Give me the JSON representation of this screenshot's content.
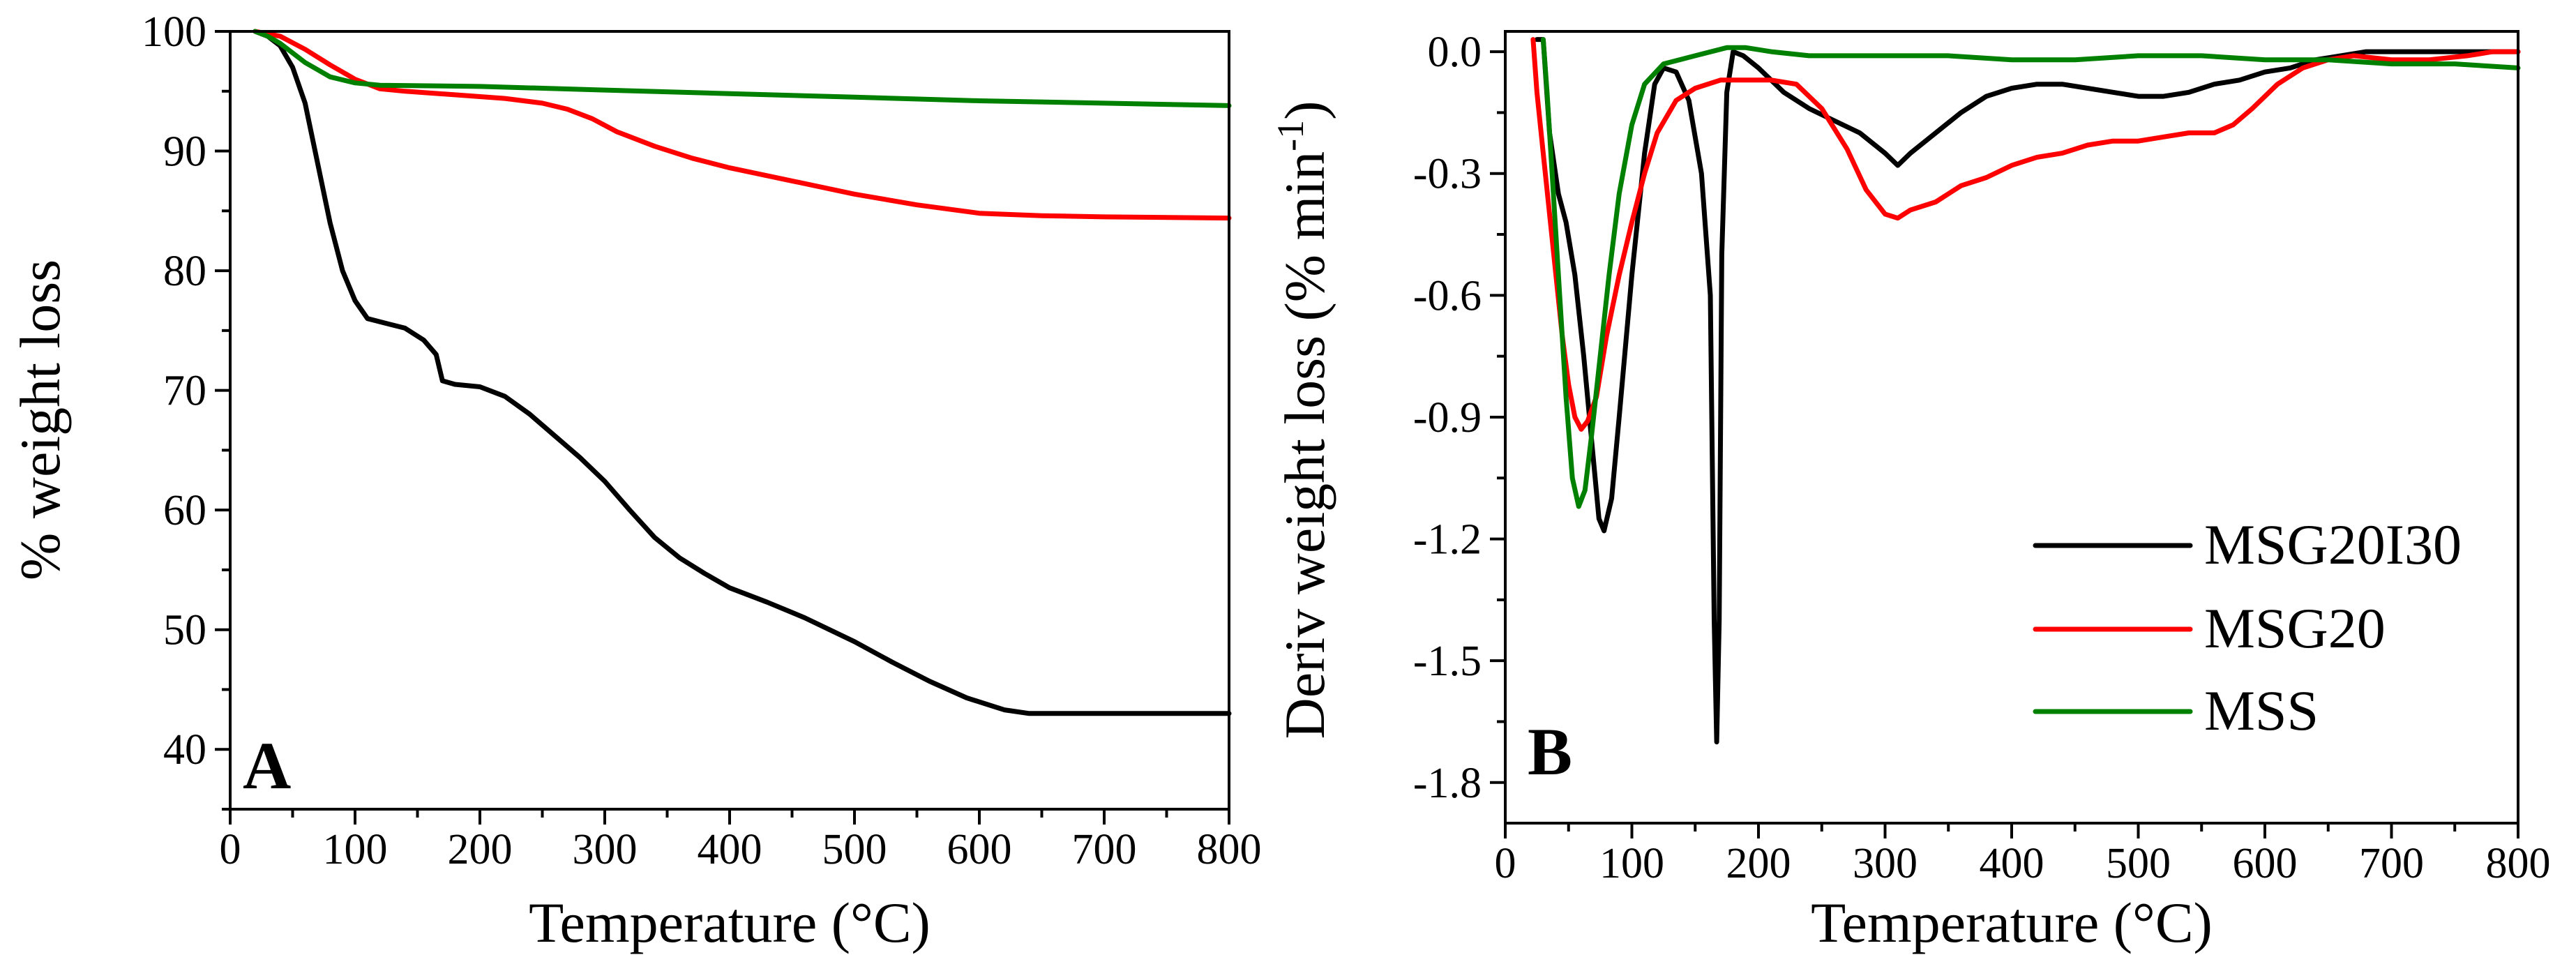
{
  "colors": {
    "MSG20I30": "#000000",
    "MSG20": "#ff0000",
    "MSS": "#008000"
  },
  "chart_data": [
    {
      "panel_label": "A",
      "type": "line",
      "xlabel": "Temperature (°C)",
      "ylabel": "% weight loss",
      "xlim": [
        0,
        800
      ],
      "ylim": [
        35,
        100
      ],
      "xticks": [
        0,
        100,
        200,
        300,
        400,
        500,
        600,
        700,
        800
      ],
      "yticks": [
        40,
        50,
        60,
        70,
        80,
        90,
        100
      ],
      "x_tick_labels": [
        "0",
        "100",
        "200",
        "300",
        "400",
        "500",
        "600",
        "700",
        "800"
      ],
      "y_tick_labels": [
        "40",
        "50",
        "60",
        "70",
        "80",
        "90",
        "100"
      ],
      "grid": false,
      "series": [
        {
          "name": "MSG20I30",
          "color": "#000000",
          "points": [
            [
              20,
              100
            ],
            [
              30,
              99.6
            ],
            [
              40,
              98.8
            ],
            [
              50,
              97
            ],
            [
              60,
              94
            ],
            [
              70,
              89
            ],
            [
              80,
              84
            ],
            [
              90,
              80
            ],
            [
              100,
              77.5
            ],
            [
              110,
              76
            ],
            [
              125,
              75.6
            ],
            [
              140,
              75.2
            ],
            [
              155,
              74.2
            ],
            [
              165,
              73
            ],
            [
              170,
              70.8
            ],
            [
              180,
              70.5
            ],
            [
              200,
              70.3
            ],
            [
              220,
              69.5
            ],
            [
              240,
              68
            ],
            [
              260,
              66.2
            ],
            [
              280,
              64.4
            ],
            [
              300,
              62.4
            ],
            [
              320,
              60
            ],
            [
              340,
              57.7
            ],
            [
              360,
              56
            ],
            [
              380,
              54.7
            ],
            [
              400,
              53.5
            ],
            [
              430,
              52.3
            ],
            [
              460,
              51
            ],
            [
              500,
              49
            ],
            [
              530,
              47.3
            ],
            [
              560,
              45.7
            ],
            [
              590,
              44.3
            ],
            [
              620,
              43.3
            ],
            [
              640,
              43
            ],
            [
              660,
              43
            ],
            [
              700,
              43
            ],
            [
              750,
              43
            ],
            [
              800,
              43
            ]
          ]
        },
        {
          "name": "MSG20",
          "color": "#ff0000",
          "points": [
            [
              20,
              100
            ],
            [
              40,
              99.6
            ],
            [
              60,
              98.5
            ],
            [
              80,
              97.2
            ],
            [
              100,
              96
            ],
            [
              120,
              95.2
            ],
            [
              140,
              95
            ],
            [
              180,
              94.7
            ],
            [
              220,
              94.4
            ],
            [
              250,
              94
            ],
            [
              270,
              93.5
            ],
            [
              290,
              92.7
            ],
            [
              310,
              91.6
            ],
            [
              340,
              90.4
            ],
            [
              370,
              89.4
            ],
            [
              400,
              88.6
            ],
            [
              450,
              87.5
            ],
            [
              500,
              86.4
            ],
            [
              550,
              85.5
            ],
            [
              600,
              84.8
            ],
            [
              650,
              84.6
            ],
            [
              700,
              84.5
            ],
            [
              800,
              84.4
            ]
          ]
        },
        {
          "name": "MSS",
          "color": "#008000",
          "points": [
            [
              20,
              100
            ],
            [
              30,
              99.6
            ],
            [
              40,
              99
            ],
            [
              50,
              98.2
            ],
            [
              60,
              97.4
            ],
            [
              70,
              96.8
            ],
            [
              80,
              96.2
            ],
            [
              100,
              95.7
            ],
            [
              120,
              95.5
            ],
            [
              200,
              95.4
            ],
            [
              300,
              95.1
            ],
            [
              400,
              94.8
            ],
            [
              500,
              94.5
            ],
            [
              600,
              94.2
            ],
            [
              700,
              94
            ],
            [
              800,
              93.8
            ]
          ]
        }
      ]
    },
    {
      "panel_label": "B",
      "type": "line",
      "xlabel": "Temperature (°C)",
      "ylabel": "Deriv weight loss (% min",
      "ylabel_superscript": "-1",
      "ylabel_end": ")",
      "xlim": [
        0,
        800
      ],
      "ylim": [
        -1.9,
        0.05
      ],
      "xticks": [
        0,
        100,
        200,
        300,
        400,
        500,
        600,
        700,
        800
      ],
      "yticks": [
        0.0,
        -0.3,
        -0.6,
        -0.9,
        -1.2,
        -1.5,
        -1.8
      ],
      "x_tick_labels": [
        "0",
        "100",
        "200",
        "300",
        "400",
        "500",
        "600",
        "700",
        "800"
      ],
      "y_tick_labels": [
        "0.0",
        "-0.3",
        "-0.6",
        "-0.9",
        "-1.2",
        "-1.5",
        "-1.8"
      ],
      "grid": false,
      "legend_position": "bottom-right",
      "series": [
        {
          "name": "MSG20I30",
          "color": "#000000",
          "points": [
            [
              25,
              0.03
            ],
            [
              30,
              0.03
            ],
            [
              35,
              -0.2
            ],
            [
              42,
              -0.35
            ],
            [
              48,
              -0.42
            ],
            [
              55,
              -0.55
            ],
            [
              62,
              -0.75
            ],
            [
              68,
              -0.95
            ],
            [
              74,
              -1.15
            ],
            [
              78,
              -1.18
            ],
            [
              84,
              -1.1
            ],
            [
              90,
              -0.9
            ],
            [
              100,
              -0.55
            ],
            [
              110,
              -0.25
            ],
            [
              118,
              -0.08
            ],
            [
              125,
              -0.04
            ],
            [
              135,
              -0.05
            ],
            [
              145,
              -0.12
            ],
            [
              155,
              -0.3
            ],
            [
              162,
              -0.6
            ],
            [
              165,
              -1.4
            ],
            [
              167,
              -1.7
            ],
            [
              169,
              -1.4
            ],
            [
              171,
              -0.5
            ],
            [
              175,
              -0.1
            ],
            [
              180,
              0.0
            ],
            [
              188,
              -0.01
            ],
            [
              200,
              -0.04
            ],
            [
              220,
              -0.1
            ],
            [
              240,
              -0.14
            ],
            [
              260,
              -0.17
            ],
            [
              280,
              -0.2
            ],
            [
              300,
              -0.25
            ],
            [
              310,
              -0.28
            ],
            [
              320,
              -0.25
            ],
            [
              340,
              -0.2
            ],
            [
              360,
              -0.15
            ],
            [
              380,
              -0.11
            ],
            [
              400,
              -0.09
            ],
            [
              420,
              -0.08
            ],
            [
              440,
              -0.08
            ],
            [
              460,
              -0.09
            ],
            [
              480,
              -0.1
            ],
            [
              500,
              -0.11
            ],
            [
              520,
              -0.11
            ],
            [
              540,
              -0.1
            ],
            [
              560,
              -0.08
            ],
            [
              580,
              -0.07
            ],
            [
              600,
              -0.05
            ],
            [
              620,
              -0.04
            ],
            [
              640,
              -0.02
            ],
            [
              660,
              -0.01
            ],
            [
              680,
              0.0
            ],
            [
              700,
              0.0
            ],
            [
              750,
              0.0
            ],
            [
              800,
              0.0
            ]
          ]
        },
        {
          "name": "MSG20",
          "color": "#ff0000",
          "points": [
            [
              22,
              0.03
            ],
            [
              25,
              -0.1
            ],
            [
              30,
              -0.25
            ],
            [
              35,
              -0.4
            ],
            [
              40,
              -0.55
            ],
            [
              45,
              -0.7
            ],
            [
              50,
              -0.82
            ],
            [
              55,
              -0.9
            ],
            [
              60,
              -0.93
            ],
            [
              65,
              -0.91
            ],
            [
              72,
              -0.85
            ],
            [
              80,
              -0.7
            ],
            [
              90,
              -0.55
            ],
            [
              100,
              -0.42
            ],
            [
              110,
              -0.3
            ],
            [
              120,
              -0.2
            ],
            [
              135,
              -0.12
            ],
            [
              150,
              -0.09
            ],
            [
              170,
              -0.07
            ],
            [
              190,
              -0.07
            ],
            [
              210,
              -0.07
            ],
            [
              230,
              -0.08
            ],
            [
              250,
              -0.14
            ],
            [
              270,
              -0.24
            ],
            [
              285,
              -0.34
            ],
            [
              300,
              -0.4
            ],
            [
              310,
              -0.41
            ],
            [
              320,
              -0.39
            ],
            [
              340,
              -0.37
            ],
            [
              360,
              -0.33
            ],
            [
              380,
              -0.31
            ],
            [
              400,
              -0.28
            ],
            [
              420,
              -0.26
            ],
            [
              440,
              -0.25
            ],
            [
              460,
              -0.23
            ],
            [
              480,
              -0.22
            ],
            [
              500,
              -0.22
            ],
            [
              520,
              -0.21
            ],
            [
              540,
              -0.2
            ],
            [
              560,
              -0.2
            ],
            [
              575,
              -0.18
            ],
            [
              590,
              -0.14
            ],
            [
              610,
              -0.08
            ],
            [
              630,
              -0.04
            ],
            [
              650,
              -0.02
            ],
            [
              670,
              -0.01
            ],
            [
              700,
              -0.02
            ],
            [
              730,
              -0.02
            ],
            [
              760,
              -0.01
            ],
            [
              780,
              0.0
            ],
            [
              800,
              0.0
            ]
          ]
        },
        {
          "name": "MSS",
          "color": "#008000",
          "points": [
            [
              30,
              0.03
            ],
            [
              33,
              -0.1
            ],
            [
              38,
              -0.35
            ],
            [
              43,
              -0.6
            ],
            [
              48,
              -0.85
            ],
            [
              53,
              -1.05
            ],
            [
              58,
              -1.12
            ],
            [
              63,
              -1.08
            ],
            [
              68,
              -0.95
            ],
            [
              75,
              -0.75
            ],
            [
              82,
              -0.55
            ],
            [
              90,
              -0.35
            ],
            [
              100,
              -0.18
            ],
            [
              110,
              -0.08
            ],
            [
              125,
              -0.03
            ],
            [
              150,
              -0.01
            ],
            [
              175,
              0.01
            ],
            [
              190,
              0.01
            ],
            [
              210,
              0.0
            ],
            [
              240,
              -0.01
            ],
            [
              300,
              -0.01
            ],
            [
              350,
              -0.01
            ],
            [
              400,
              -0.02
            ],
            [
              450,
              -0.02
            ],
            [
              500,
              -0.01
            ],
            [
              550,
              -0.01
            ],
            [
              600,
              -0.02
            ],
            [
              650,
              -0.02
            ],
            [
              700,
              -0.03
            ],
            [
              750,
              -0.03
            ],
            [
              800,
              -0.04
            ]
          ]
        }
      ]
    }
  ]
}
